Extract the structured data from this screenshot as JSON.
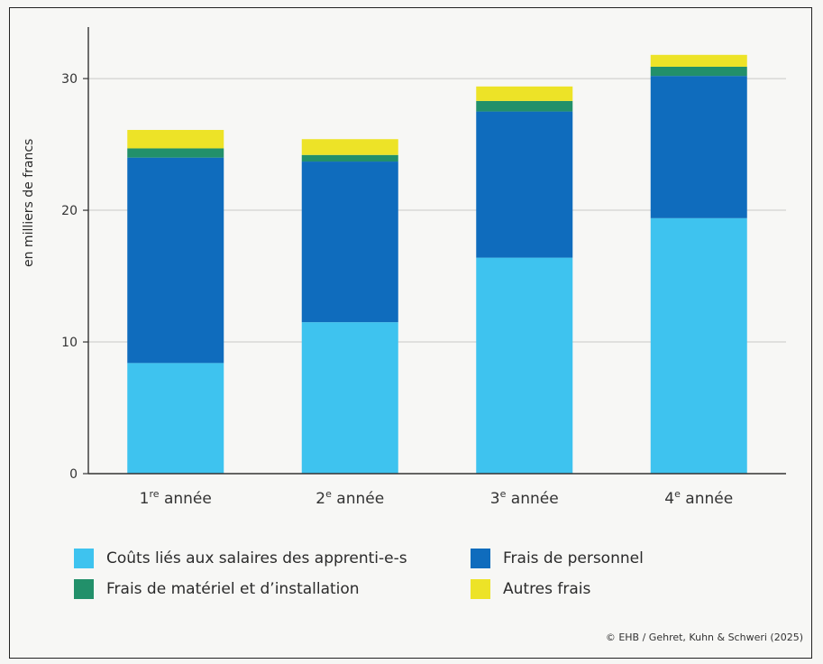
{
  "chart_data": {
    "type": "bar",
    "stacked": true,
    "categories": [
      "1re année",
      "2e année",
      "3e année",
      "4e année"
    ],
    "category_labels": [
      {
        "num": "1",
        "sup": "re",
        "rest": " année"
      },
      {
        "num": "2",
        "sup": "e",
        "rest": " année"
      },
      {
        "num": "3",
        "sup": "e",
        "rest": " année"
      },
      {
        "num": "4",
        "sup": "e",
        "rest": " année"
      }
    ],
    "series": [
      {
        "name": "Coûts liés aux salaires des apprenti-e-s",
        "color": "#3ec3ef",
        "values": [
          8.4,
          11.5,
          16.4,
          19.4
        ]
      },
      {
        "name": "Frais de personnel",
        "color": "#0f6cbd",
        "values": [
          15.6,
          12.2,
          11.1,
          10.8
        ]
      },
      {
        "name": "Frais de matériel et d’installation",
        "color": "#22906a",
        "values": [
          0.7,
          0.5,
          0.8,
          0.7
        ]
      },
      {
        "name": "Autres frais",
        "color": "#ede327",
        "values": [
          1.4,
          1.2,
          1.1,
          0.9
        ]
      }
    ],
    "ylabel": "en milliers de francs",
    "xlabel": "",
    "ylim": [
      0,
      33.5
    ],
    "yticks": [
      0,
      10,
      20,
      30
    ],
    "grid": true,
    "legend_placement": "bottom"
  },
  "credit": "© EHB / Gehret, Kuhn & Schweri (2025)"
}
